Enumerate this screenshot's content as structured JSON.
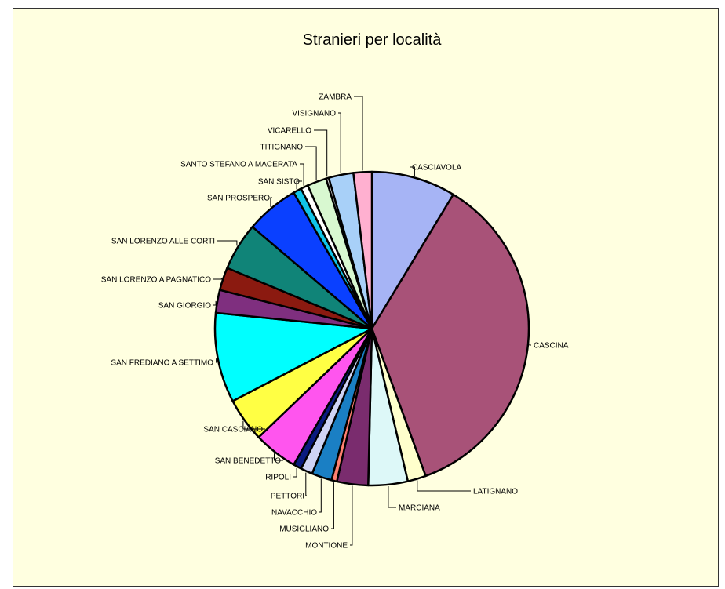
{
  "chart_data": {
    "type": "pie",
    "title": "Stranieri per località",
    "slices": [
      {
        "label": "CASCIAVOLA",
        "value": 9.2,
        "color": "#a6b4f5"
      },
      {
        "label": "CASCINA",
        "value": 37.9,
        "color": "#a85278"
      },
      {
        "label": "LATIGNANO",
        "value": 2.0,
        "color": "#ffffcc"
      },
      {
        "label": "MARCIANA",
        "value": 4.3,
        "color": "#ddf8f8"
      },
      {
        "label": "MONTIONE",
        "value": 3.4,
        "color": "#7a2c6e"
      },
      {
        "label": "MUSIGLIANO",
        "value": 0.6,
        "color": "#ff8070"
      },
      {
        "label": "NAVACCHIO",
        "value": 2.2,
        "color": "#1a7fc4"
      },
      {
        "label": "PETTORI",
        "value": 1.3,
        "color": "#cfd4f5"
      },
      {
        "label": "RIPOLI",
        "value": 0.9,
        "color": "#0a1a80"
      },
      {
        "label": "SAN BENEDETTO",
        "value": 4.8,
        "color": "#ff55ee"
      },
      {
        "label": "SAN CASCIANO",
        "value": 4.8,
        "color": "#ffff44"
      },
      {
        "label": "SAN FREDIANO A SETTIMO",
        "value": 9.8,
        "color": "#00ffff"
      },
      {
        "label": "SAN GIORGIO",
        "value": 2.5,
        "color": "#7f2f7f"
      },
      {
        "label": "SAN LORENZO A PAGNATICO",
        "value": 2.5,
        "color": "#8b1a10"
      },
      {
        "label": "SAN LORENZO ALLE CORTI",
        "value": 5.2,
        "color": "#108478"
      },
      {
        "label": "SAN PROSPERO",
        "value": 5.8,
        "color": "#0a40ff"
      },
      {
        "label": "SAN SISTO",
        "value": 0.9,
        "color": "#10c4e8"
      },
      {
        "label": "SANTO STEFANO A MACERATA",
        "value": 0.8,
        "color": "#ffffff"
      },
      {
        "label": "TITIGNANO",
        "value": 2.1,
        "color": "#d8f8d0"
      },
      {
        "label": "VICARELLO",
        "value": 0.3,
        "color": "#e0e0e0"
      },
      {
        "label": "VISIGNANO",
        "value": 2.7,
        "color": "#a8d0f8"
      },
      {
        "label": "ZAMBRA",
        "value": 2.0,
        "color": "#ffb0d0"
      }
    ]
  }
}
